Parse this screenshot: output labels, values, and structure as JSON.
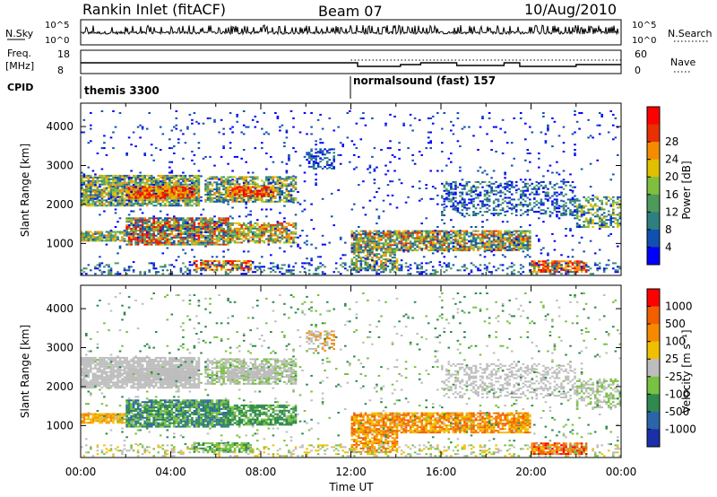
{
  "header": {
    "title": "Rankin Inlet (fitACF)",
    "beam": "Beam 07",
    "date": "10/Aug/2010"
  },
  "top_panels": {
    "sky_label": "N.Sky",
    "sky_ticks": [
      "10^5",
      "10^0"
    ],
    "search_label": "N.Search",
    "freq_label_1": "Freq.",
    "freq_label_2": "[MHz]",
    "freq_ticks": [
      "18",
      "8"
    ],
    "nave_label": "Nave",
    "nave_ticks": [
      "60",
      "0"
    ],
    "cpid_label": "CPID",
    "cpid_segments": [
      {
        "text": "themis 3300",
        "start_hour": 0
      },
      {
        "text": "normalsound (fast) 157",
        "start_hour": 12
      }
    ]
  },
  "chart_data": [
    {
      "type": "heatmap",
      "ylabel": "Slant Range [km]",
      "yticks": [
        "1000",
        "2000",
        "3000",
        "4000"
      ],
      "ylim": [
        180,
        4600
      ],
      "xticks": [
        "00:00",
        "04:00",
        "08:00",
        "12:00",
        "16:00",
        "20:00",
        "00:00"
      ],
      "xlim_hours": [
        0,
        24
      ],
      "colorbar": {
        "label": "Power [dB]",
        "ticks": [
          "4",
          "8",
          "12",
          "16",
          "20",
          "24",
          "28"
        ],
        "colors": [
          "#0000ff",
          "#1050b0",
          "#2e7f7f",
          "#4d9a5a",
          "#7fbf3f",
          "#e0c000",
          "#f58c00",
          "#e83000",
          "#ff0000"
        ]
      }
    },
    {
      "type": "heatmap",
      "ylabel": "Slant Range [km]",
      "yticks": [
        "1000",
        "2000",
        "3000",
        "4000"
      ],
      "ylim": [
        180,
        4600
      ],
      "xticks": [
        "00:00",
        "04:00",
        "08:00",
        "12:00",
        "16:00",
        "20:00",
        "00:00"
      ],
      "xlim_hours": [
        0,
        24
      ],
      "xlabel": "Time UT",
      "colorbar": {
        "label": "Velocity [m s⁻¹]",
        "ticks": [
          "1000",
          "500",
          "100",
          "25",
          "-25",
          "-100",
          "-500",
          "-1000"
        ],
        "colors": [
          "#1a2fa8",
          "#2a65a8",
          "#2e8a4e",
          "#79c142",
          "#bdbdbd",
          "#f0c000",
          "#f58a00",
          "#f25e00",
          "#ff0000"
        ]
      }
    }
  ]
}
